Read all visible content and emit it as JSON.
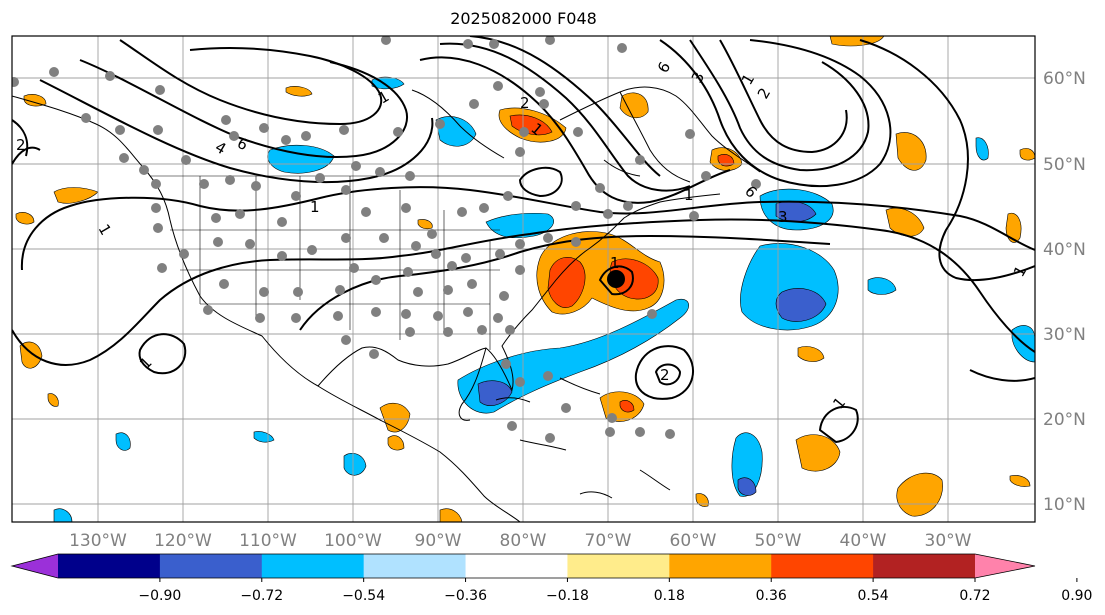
{
  "title": "2025082000 F048",
  "map": {
    "lon_labels": [
      "130°W",
      "120°W",
      "110°W",
      "100°W",
      "90°W",
      "80°W",
      "70°W",
      "60°W",
      "50°W",
      "40°W",
      "30°W"
    ],
    "lat_labels": [
      "60°N",
      "50°N",
      "40°N",
      "30°N",
      "20°N",
      "10°N"
    ],
    "contour_labels": [
      "1",
      "1",
      "1",
      "1",
      "1",
      "1",
      "1",
      "1",
      "2",
      "2",
      "2",
      "3",
      "3",
      "4",
      "6",
      "6",
      "6",
      "2",
      "1",
      "1"
    ]
  },
  "colorbar": {
    "colors": [
      "#9b30d9",
      "#00008b",
      "#3a5fcd",
      "#00bfff",
      "#b0e2ff",
      "#ffffff",
      "#ffec8b",
      "#ffa500",
      "#ff4500",
      "#b22222",
      "#ff82ab"
    ],
    "tick_labels": [
      "−0.90",
      "−0.72",
      "−0.54",
      "−0.36",
      "−0.18",
      "0.18",
      "0.36",
      "0.54",
      "0.72",
      "0.90"
    ]
  }
}
